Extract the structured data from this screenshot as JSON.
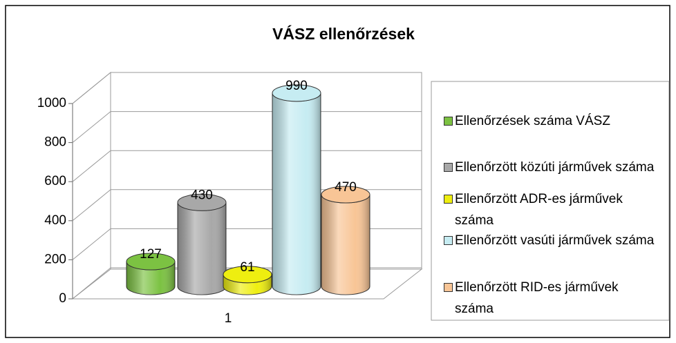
{
  "chart_data": {
    "type": "bar3d",
    "title": "VÁSZ ellenőrzések",
    "categories": [
      "1"
    ],
    "series": [
      {
        "name": "Ellenőrzések száma VÁSZ",
        "color": "#7cc242",
        "values": [
          127
        ]
      },
      {
        "name": "Ellenőrzött közúti járművek száma",
        "color": "#a8a8a8",
        "values": [
          430
        ]
      },
      {
        "name": "Ellenőrzött ADR-es járművek száma",
        "color": "#eeee10",
        "values": [
          61
        ]
      },
      {
        "name": "Ellenőrzött vasúti járművek száma",
        "color": "#c6ecf2",
        "values": [
          990
        ]
      },
      {
        "name": "Ellenőrzött RID-es járművek száma",
        "color": "#f8c596",
        "values": [
          470
        ]
      }
    ],
    "ylim": [
      0,
      1000
    ],
    "yticks": [
      0,
      200,
      400,
      600,
      800,
      1000
    ],
    "grid": true,
    "legend": "right"
  }
}
